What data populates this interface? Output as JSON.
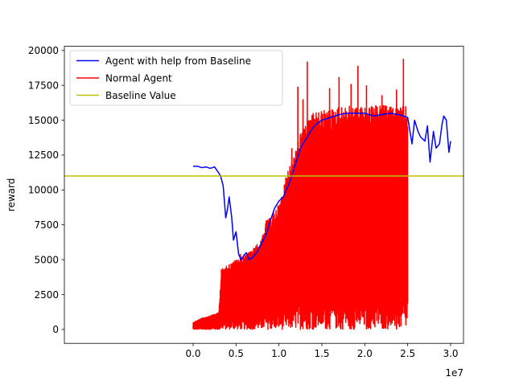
{
  "chart_data": {
    "type": "line",
    "ylabel": "reward",
    "x_offset_label": "1e7",
    "xlim": [
      -15000000,
      31500000
    ],
    "ylim": [
      -1000,
      20300
    ],
    "xticks": [
      0,
      5000000,
      10000000,
      15000000,
      20000000,
      25000000,
      30000000
    ],
    "xtick_labels": [
      "0.0",
      "0.5",
      "1.0",
      "1.5",
      "2.0",
      "2.5",
      "3.0"
    ],
    "yticks": [
      0,
      2500,
      5000,
      7500,
      10000,
      12500,
      15000,
      17500,
      20000
    ],
    "ytick_labels": [
      "0",
      "2500",
      "5000",
      "7500",
      "10000",
      "12500",
      "15000",
      "17500",
      "20000"
    ],
    "legend": "top-left",
    "series": [
      {
        "name": "Agent with help from Baseline",
        "color": "#0000ff",
        "x": [
          0,
          500000,
          1000000,
          1500000,
          2000000,
          2500000,
          3000000,
          3200000,
          3500000,
          3800000,
          4000000,
          4200000,
          4500000,
          4700000,
          5000000,
          5300000,
          5600000,
          5900000,
          6200000,
          6500000,
          7000000,
          7500000,
          8000000,
          8500000,
          9000000,
          9500000,
          10000000,
          10500000,
          11000000,
          11500000,
          12000000,
          12500000,
          13000000,
          13500000,
          14000000,
          14500000,
          15000000,
          16000000,
          17000000,
          18000000,
          19000000,
          20000000,
          21000000,
          22000000,
          23000000,
          24000000,
          25000000,
          25500000,
          25800000,
          26200000,
          26500000,
          27000000,
          27300000,
          27600000,
          28000000,
          28300000,
          28700000,
          29000000,
          29200000,
          29500000,
          29800000,
          30000000
        ],
        "y": [
          11700,
          11700,
          11600,
          11650,
          11550,
          11650,
          11200,
          11000,
          10300,
          8000,
          8600,
          9500,
          8000,
          6400,
          7000,
          5400,
          4950,
          5300,
          5500,
          5000,
          5200,
          5600,
          6200,
          6800,
          7800,
          8700,
          9200,
          9500,
          10200,
          11000,
          12000,
          13000,
          13500,
          14000,
          14500,
          14800,
          15000,
          15200,
          15400,
          15500,
          15500,
          15500,
          15300,
          15400,
          15500,
          15400,
          15200,
          13300,
          15000,
          14200,
          13800,
          13500,
          14600,
          12000,
          14200,
          13000,
          13300,
          14700,
          15300,
          15000,
          12700,
          13500
        ]
      },
      {
        "name": "Normal Agent",
        "color": "#ff0000",
        "x_range": [
          0,
          25000000
        ],
        "lower_envelope": {
          "x": [
            0,
            3000000,
            5000000,
            8000000,
            10000000,
            11000000,
            12000000,
            15000000,
            20000000,
            25000000
          ],
          "y": [
            0,
            0,
            0,
            0,
            0,
            0,
            0,
            0,
            0,
            0
          ]
        },
        "upper_envelope": {
          "x": [
            0,
            1000000,
            2000000,
            3000000,
            3300000,
            4000000,
            5000000,
            6000000,
            7000000,
            8000000,
            8500000,
            9000000,
            9500000,
            10000000,
            10500000,
            11000000,
            11500000,
            12000000,
            12500000,
            13000000,
            14000000,
            15000000,
            16000000,
            17000000,
            18000000,
            19000000,
            20000000,
            21000000,
            22000000,
            23000000,
            24000000,
            24900000
          ],
          "y": [
            500,
            800,
            1000,
            1200,
            4300,
            4600,
            5000,
            5300,
            5800,
            6500,
            7800,
            8000,
            8500,
            9000,
            10000,
            11500,
            12000,
            13000,
            14000,
            14800,
            15500,
            15700,
            15800,
            16000,
            16000,
            16000,
            16000,
            16000,
            16100,
            16000,
            16000,
            16000
          ]
        },
        "spikes": {
          "x": [
            3300000,
            5500000,
            8600000,
            10800000,
            11500000,
            12200000,
            12800000,
            13300000,
            15900000,
            17000000,
            18400000,
            19200000,
            20200000,
            22000000,
            23700000,
            24500000
          ],
          "y": [
            4300,
            5400,
            7800,
            10900,
            13000,
            17400,
            16500,
            19200,
            17300,
            18100,
            17600,
            18900,
            17500,
            16800,
            17200,
            19400
          ]
        },
        "dips": {
          "x": [
            17200000,
            18400000,
            20200000,
            23700000
          ],
          "y": [
            3700,
            3600,
            3700,
            3800
          ]
        }
      },
      {
        "name": "Baseline Value",
        "color": "#bfbf00",
        "y_constant": 11000
      }
    ]
  }
}
